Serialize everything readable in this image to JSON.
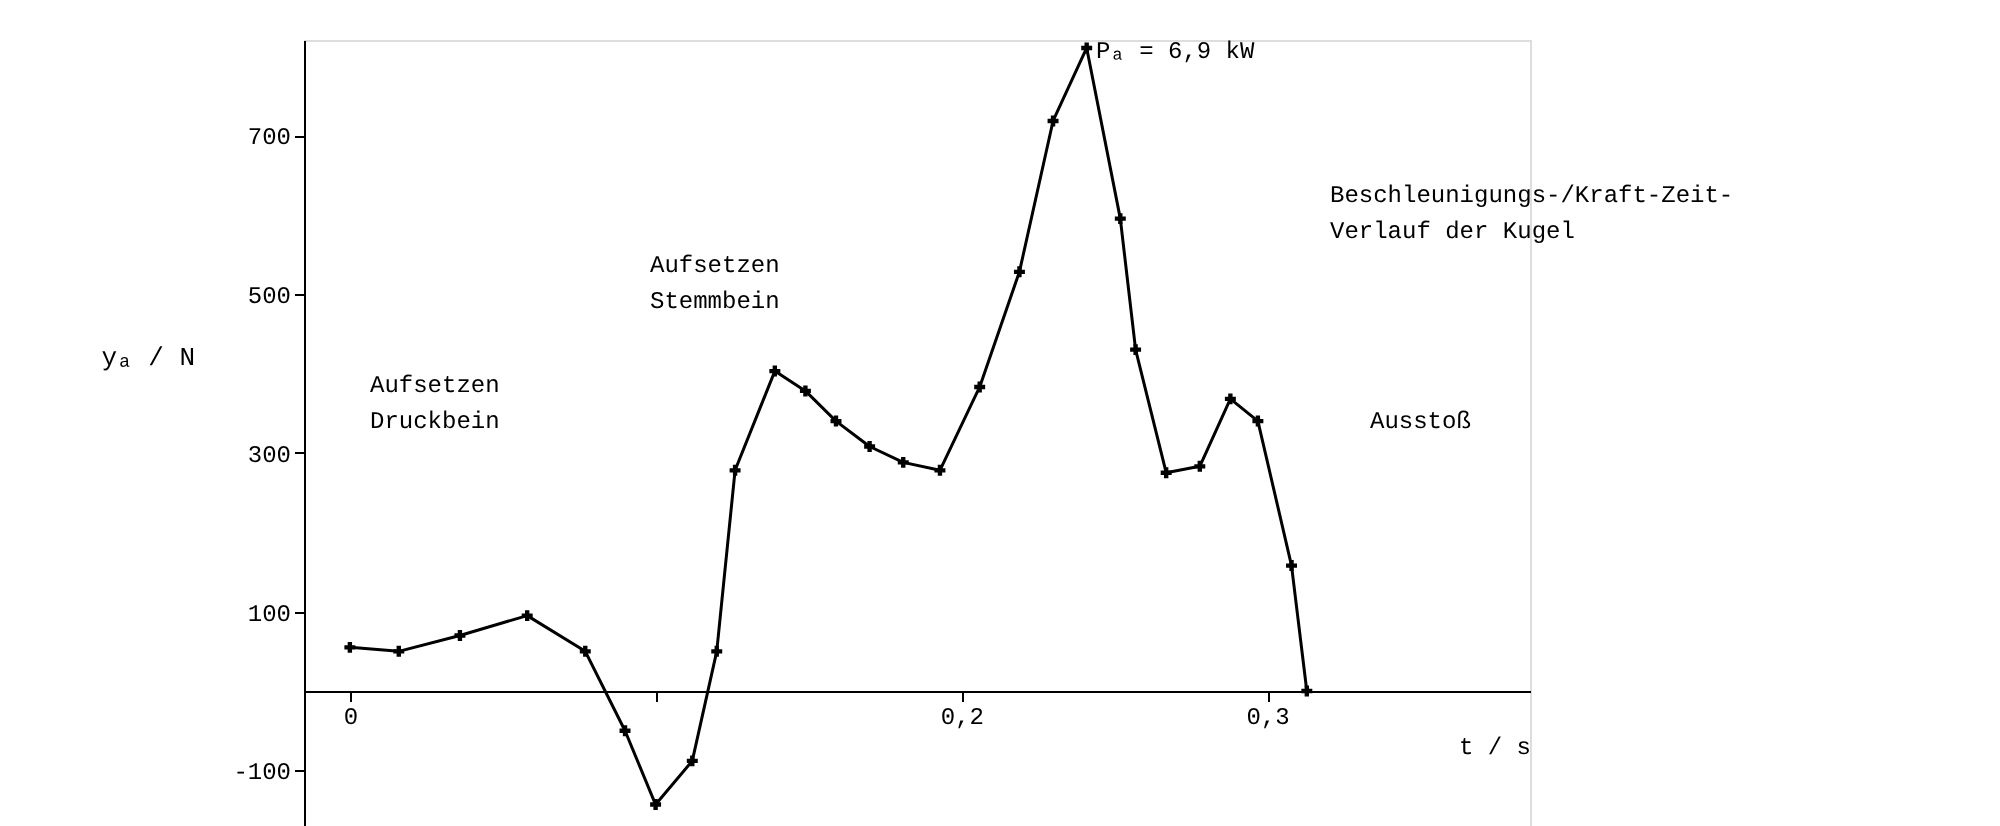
{
  "chart_data": {
    "type": "line",
    "xlabel": "t / s",
    "ylabel": "yₐ / N",
    "x": [
      0.0,
      0.016,
      0.036,
      0.058,
      0.077,
      0.09,
      0.1,
      0.112,
      0.12,
      0.126,
      0.139,
      0.149,
      0.159,
      0.17,
      0.181,
      0.193,
      0.206,
      0.219,
      0.23,
      0.241,
      0.252,
      0.257,
      0.267,
      0.278,
      0.288,
      0.297,
      0.308,
      0.313
    ],
    "series": [
      {
        "color": "#000000",
        "values": [
          55,
          50,
          70,
          95,
          50,
          -50,
          -143,
          -88,
          50,
          278,
          403,
          378,
          340,
          308,
          288,
          278,
          383,
          528,
          718,
          810,
          595,
          430,
          275,
          283,
          368,
          340,
          158,
          0
        ]
      }
    ],
    "xlim": [
      -0.015,
      0.386
    ],
    "ylim": [
      -170,
      820
    ],
    "xticks": [
      {
        "value": 0,
        "label": "0"
      },
      {
        "value": 0.1,
        "label": null
      },
      {
        "value": 0.2,
        "label": "0,2"
      },
      {
        "value": 0.3,
        "label": "0,3"
      }
    ],
    "yticks": [
      -100,
      100,
      300,
      500,
      700
    ],
    "marker": "cross",
    "line_style": "solid",
    "grid": false,
    "annotations": [
      "Aufsetzen Druckbein",
      "Aufsetzen Stemmbein",
      "Pₐ = 6,9 kW",
      "Beschleunigungs-/Kraft-Zeit-Verlauf der Kugel",
      "Ausstoß"
    ]
  }
}
